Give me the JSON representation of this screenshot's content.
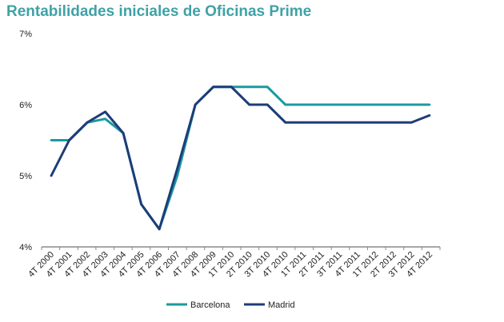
{
  "chart_data": {
    "type": "line",
    "title": "Rentabilidades iniciales de Oficinas Prime",
    "xlabel": "",
    "ylabel": "",
    "ylim": [
      4,
      7
    ],
    "yticks": [
      "4%",
      "5%",
      "6%",
      "7%"
    ],
    "grid": false,
    "legend": "bottom",
    "categories": [
      "4T 2000",
      "4T 2001",
      "4T 2002",
      "4T 2003",
      "4T 2004",
      "4T 2005",
      "4T 2006",
      "4T 2007",
      "4T 2008",
      "4T 2009",
      "1T 2010",
      "2T 2010",
      "3T 2010",
      "4T 2010",
      "1T 2011",
      "2T 2011",
      "3T 2011",
      "4T 2011",
      "1T 2012",
      "2T 2012",
      "3T 2012",
      "4T 2012"
    ],
    "series": [
      {
        "name": "Barcelona",
        "color": "#1b9aa0",
        "values": [
          5.5,
          5.5,
          5.75,
          5.8,
          5.6,
          4.6,
          4.25,
          5.0,
          6.0,
          6.25,
          6.25,
          6.25,
          6.25,
          6.0,
          6.0,
          6.0,
          6.0,
          6.0,
          6.0,
          6.0,
          6.0,
          6.0
        ]
      },
      {
        "name": "Madrid",
        "color": "#1d3d78",
        "values": [
          5.0,
          5.5,
          5.75,
          5.9,
          5.6,
          4.6,
          4.25,
          5.1,
          6.0,
          6.25,
          6.25,
          6.0,
          6.0,
          5.75,
          5.75,
          5.75,
          5.75,
          5.75,
          5.75,
          5.75,
          5.75,
          5.85
        ]
      }
    ]
  }
}
